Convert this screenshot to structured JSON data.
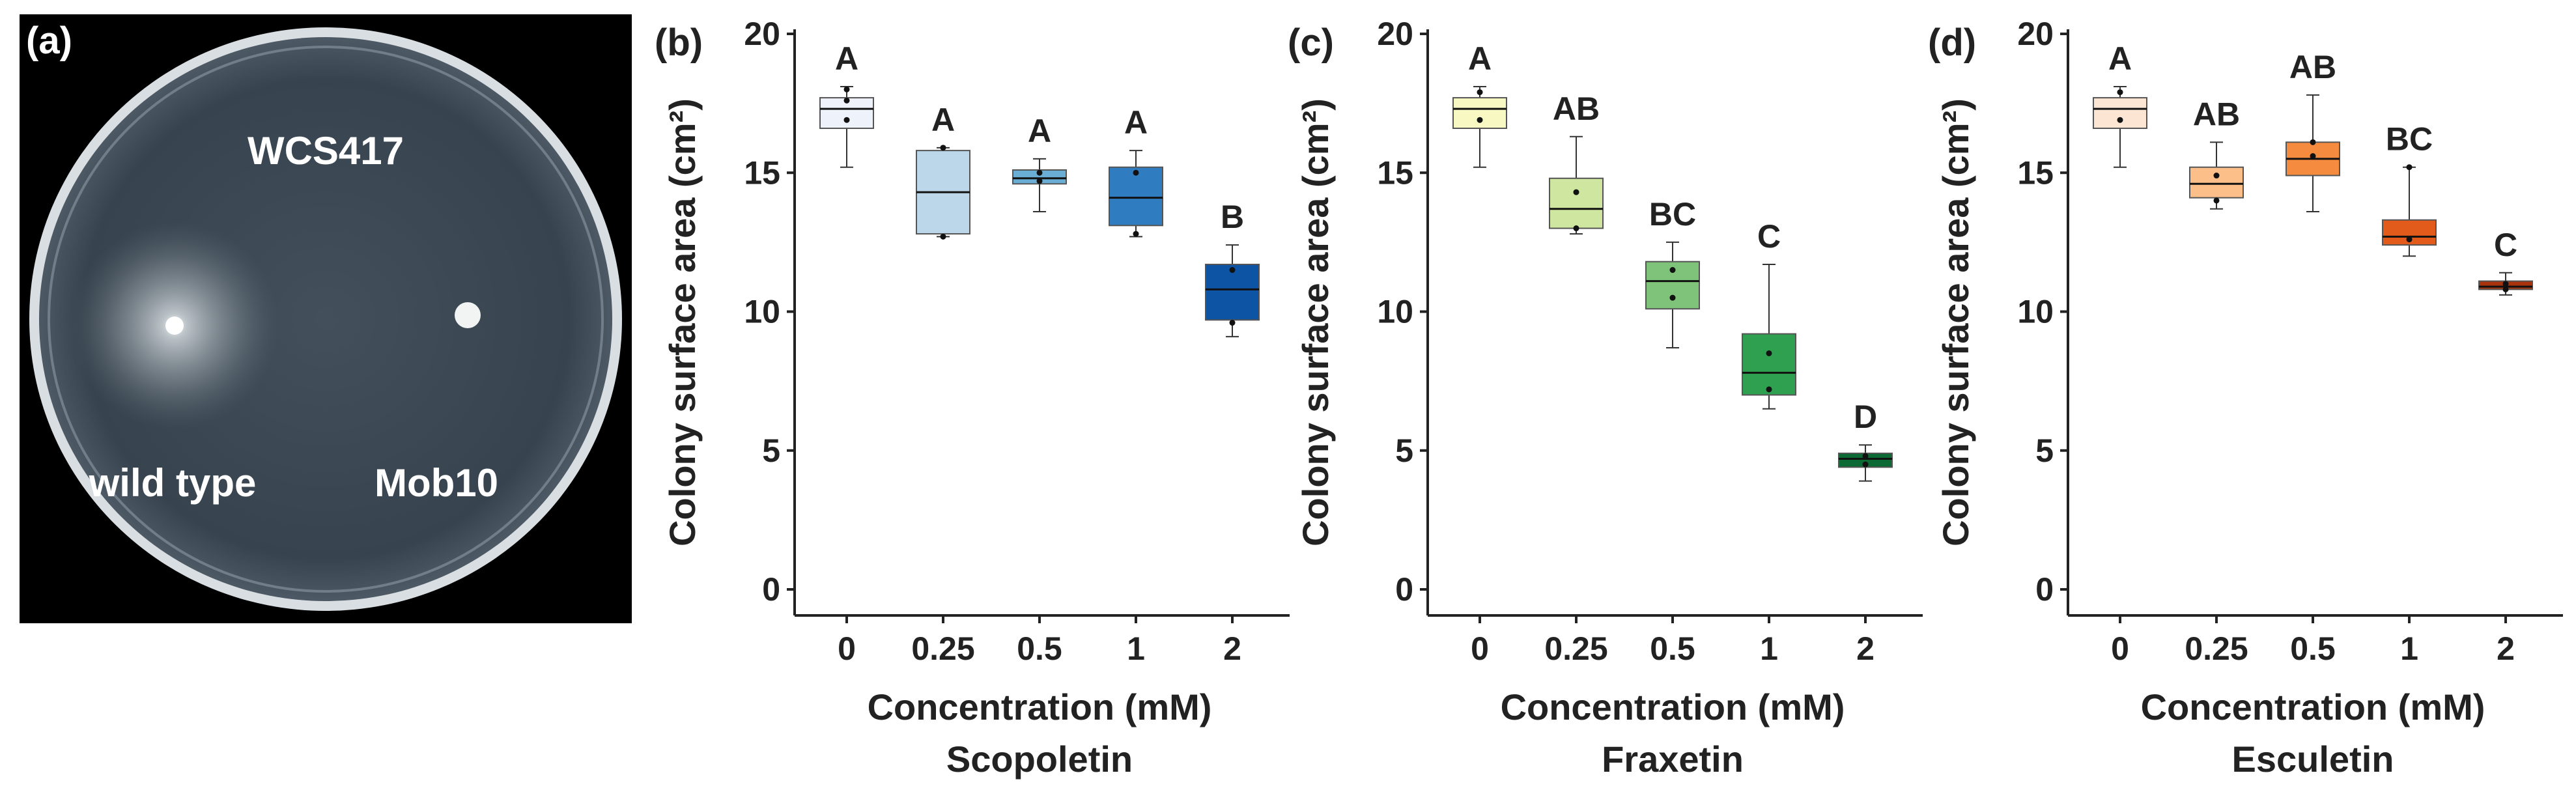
{
  "panel_a": {
    "label": "(a)",
    "plate_labels": {
      "strain": "WCS417",
      "left_colony": "wild type",
      "right_colony": "Mob10"
    }
  },
  "chart_data": [
    {
      "type": "box",
      "panel": "(b)",
      "compound": "Scopoletin",
      "xlabel": "Concentration (mM)",
      "ylabel": "Colony surface area (cm²)",
      "ylim": [
        0,
        20
      ],
      "yticks": [
        0,
        5,
        10,
        15,
        20
      ],
      "categories": [
        "0",
        "0.25",
        "0.5",
        "1",
        "2"
      ],
      "colors": [
        "#eef2fa",
        "#bcd6ea",
        "#6aaed6",
        "#2f7dc0",
        "#0d55a4"
      ],
      "boxes": [
        {
          "min": 15.2,
          "q1": 16.6,
          "median": 17.3,
          "q3": 17.7,
          "max": 18.1,
          "points": [
            16.9,
            17.6,
            18.0
          ],
          "letter": "A"
        },
        {
          "min": 12.7,
          "q1": 12.8,
          "median": 14.3,
          "q3": 15.8,
          "max": 15.9,
          "points": [
            12.7,
            15.9
          ],
          "letter": "A"
        },
        {
          "min": 13.6,
          "q1": 14.6,
          "median": 14.8,
          "q3": 15.1,
          "max": 15.5,
          "points": [
            14.7,
            15.0
          ],
          "letter": "A"
        },
        {
          "min": 12.7,
          "q1": 13.1,
          "median": 14.1,
          "q3": 15.2,
          "max": 15.8,
          "points": [
            12.8,
            15.0
          ],
          "letter": "A"
        },
        {
          "min": 9.1,
          "q1": 9.7,
          "median": 10.8,
          "q3": 11.7,
          "max": 12.4,
          "points": [
            9.6,
            11.5
          ],
          "letter": "B"
        }
      ]
    },
    {
      "type": "box",
      "panel": "(c)",
      "compound": "Fraxetin",
      "xlabel": "Concentration (mM)",
      "ylabel": "Colony surface area (cm²)",
      "ylim": [
        0,
        20
      ],
      "yticks": [
        0,
        5,
        10,
        15,
        20
      ],
      "categories": [
        "0",
        "0.25",
        "0.5",
        "1",
        "2"
      ],
      "colors": [
        "#f7f8c2",
        "#cfe6a0",
        "#7fc37a",
        "#2ea04f",
        "#0c6a35"
      ],
      "boxes": [
        {
          "min": 15.2,
          "q1": 16.6,
          "median": 17.3,
          "q3": 17.7,
          "max": 18.1,
          "points": [
            16.9,
            17.9
          ],
          "letter": "A"
        },
        {
          "min": 12.8,
          "q1": 13.0,
          "median": 13.7,
          "q3": 14.8,
          "max": 16.3,
          "points": [
            13.0,
            14.3
          ],
          "letter": "AB"
        },
        {
          "min": 8.7,
          "q1": 10.1,
          "median": 11.1,
          "q3": 11.8,
          "max": 12.5,
          "points": [
            10.5,
            11.5
          ],
          "letter": "BC"
        },
        {
          "min": 6.5,
          "q1": 7.0,
          "median": 7.8,
          "q3": 9.2,
          "max": 11.7,
          "points": [
            7.2,
            8.5
          ],
          "letter": "C"
        },
        {
          "min": 3.9,
          "q1": 4.4,
          "median": 4.7,
          "q3": 4.9,
          "max": 5.2,
          "points": [
            4.5,
            4.8
          ],
          "letter": "D"
        }
      ]
    },
    {
      "type": "box",
      "panel": "(d)",
      "compound": "Esculetin",
      "xlabel": "Concentration (mM)",
      "ylabel": "Colony surface area (cm²)",
      "ylim": [
        0,
        20
      ],
      "yticks": [
        0,
        5,
        10,
        15,
        20
      ],
      "categories": [
        "0",
        "0.25",
        "0.5",
        "1",
        "2"
      ],
      "colors": [
        "#fde5d4",
        "#fcbf8a",
        "#f48b3f",
        "#e35b1a",
        "#a8330c"
      ],
      "boxes": [
        {
          "min": 15.2,
          "q1": 16.6,
          "median": 17.3,
          "q3": 17.7,
          "max": 18.1,
          "points": [
            16.9,
            17.9
          ],
          "letter": "A"
        },
        {
          "min": 13.7,
          "q1": 14.1,
          "median": 14.6,
          "q3": 15.2,
          "max": 16.1,
          "points": [
            14.0,
            14.9
          ],
          "letter": "AB"
        },
        {
          "min": 13.6,
          "q1": 14.9,
          "median": 15.5,
          "q3": 16.1,
          "max": 17.8,
          "points": [
            15.6,
            16.1
          ],
          "letter": "AB"
        },
        {
          "min": 12.0,
          "q1": 12.4,
          "median": 12.7,
          "q3": 13.3,
          "max": 15.2,
          "points": [
            12.6,
            15.2
          ],
          "letter": "BC"
        },
        {
          "min": 10.6,
          "q1": 10.8,
          "median": 10.9,
          "q3": 11.1,
          "max": 11.4,
          "points": [
            10.8,
            11.0
          ],
          "letter": "C"
        }
      ]
    }
  ]
}
